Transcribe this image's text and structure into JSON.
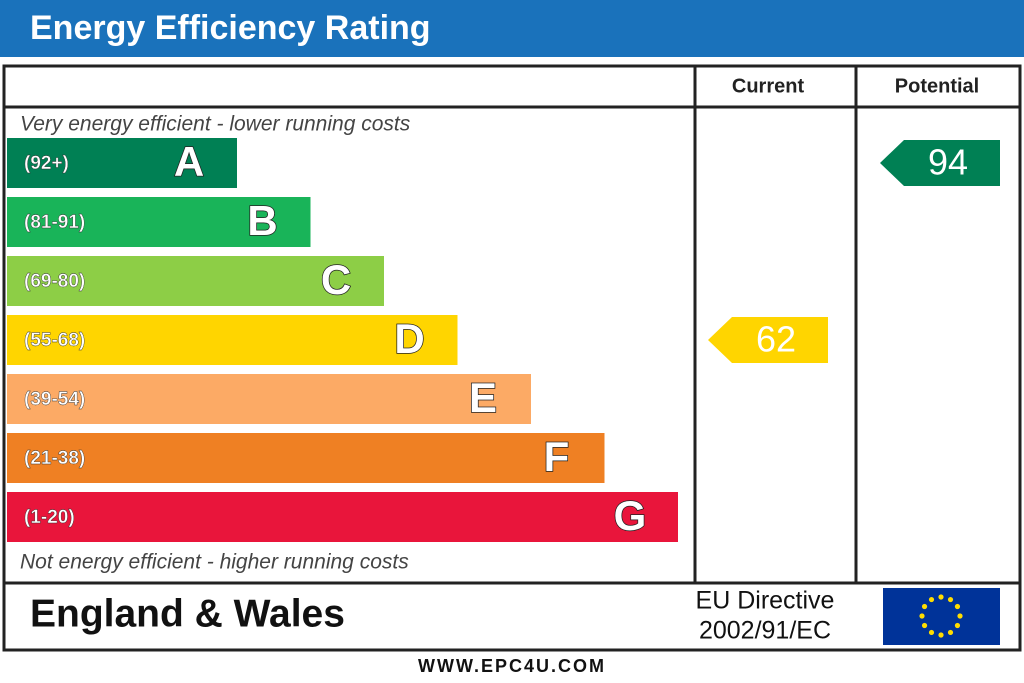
{
  "header": {
    "title": "Energy Efficiency Rating"
  },
  "columns": {
    "current": "Current",
    "potential": "Potential"
  },
  "top_note": "Very energy efficient - lower running costs",
  "bottom_note": "Not energy efficient - higher running costs",
  "bands": [
    {
      "range": "(92+)",
      "letter": "A",
      "color": "#008054"
    },
    {
      "range": "(81-91)",
      "letter": "B",
      "color": "#19b459"
    },
    {
      "range": "(69-80)",
      "letter": "C",
      "color": "#8dce46"
    },
    {
      "range": "(55-68)",
      "letter": "D",
      "color": "#ffd500"
    },
    {
      "range": "(39-54)",
      "letter": "E",
      "color": "#fcaa65"
    },
    {
      "range": "(21-38)",
      "letter": "F",
      "color": "#ef8023"
    },
    {
      "range": "(1-20)",
      "letter": "G",
      "color": "#e9153b"
    }
  ],
  "ratings": {
    "current": 62,
    "potential": 94
  },
  "footer": {
    "region": "England & Wales",
    "directive": [
      "EU Directive",
      "2002/91/EC"
    ],
    "website": "WWW.EPC4U.COM"
  }
}
